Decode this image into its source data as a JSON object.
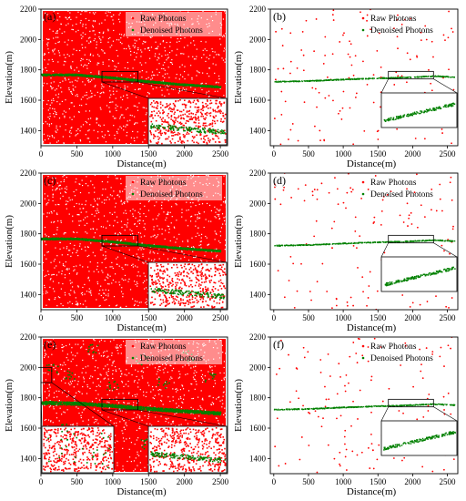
{
  "legend": {
    "raw_label": "Raw Photons",
    "denoised_label": "Denoised Photons"
  },
  "colors": {
    "raw": "#ff0000",
    "denoised": "#008000",
    "frame": "#000000"
  },
  "chart_data": [
    {
      "id": "a",
      "panel_label": "(a)",
      "type": "scatter",
      "xlabel": "Distance(m)",
      "ylabel": "Elevation(m)",
      "xlim": [
        0,
        2600
      ],
      "ylim": [
        1300,
        2200
      ],
      "xticks": [
        "0",
        "500",
        "1000",
        "1500",
        "2000",
        "2500"
      ],
      "yticks": [
        "1400",
        "1600",
        "1800",
        "2000",
        "2200"
      ],
      "raw_density": "dense",
      "noise_clusters": false,
      "series": [
        {
          "name": "Raw Photons",
          "x_range": [
            0,
            2600
          ],
          "y_range": [
            1300,
            2200
          ]
        },
        {
          "name": "Denoised Photons",
          "x": [
            0,
            500,
            1000,
            1500,
            2000,
            2500
          ],
          "y": [
            1770,
            1770,
            1750,
            1725,
            1705,
            1690
          ]
        }
      ],
      "zoom_boxes": [
        {
          "x": [
            850,
            1350
          ],
          "y": [
            1720,
            1790
          ]
        }
      ]
    },
    {
      "id": "b",
      "panel_label": "(b)",
      "type": "scatter",
      "xlabel": "Distance(m)",
      "ylabel": "Elevation(m)",
      "xlim": [
        -50,
        2650
      ],
      "ylim": [
        1300,
        2200
      ],
      "xticks": [
        "0",
        "500",
        "1000",
        "1500",
        "2000",
        "2500"
      ],
      "yticks": [
        "1400",
        "1600",
        "1800",
        "2000",
        "2200"
      ],
      "raw_density": "sparse",
      "noise_clusters": false,
      "series": [
        {
          "name": "Raw Photons",
          "x_range": [
            0,
            2600
          ],
          "y_range": [
            1300,
            2200
          ]
        },
        {
          "name": "Denoised Photons",
          "x": [
            0,
            500,
            1000,
            1500,
            2000,
            2300,
            2600
          ],
          "y": [
            1725,
            1730,
            1740,
            1748,
            1755,
            1762,
            1755
          ]
        }
      ],
      "zoom_boxes": [
        {
          "x": [
            1650,
            2300
          ],
          "y": [
            1740,
            1790
          ]
        }
      ]
    },
    {
      "id": "c",
      "panel_label": "(c)",
      "type": "scatter",
      "xlabel": "Distance(m)",
      "ylabel": "Elevation(m)",
      "xlim": [
        0,
        2600
      ],
      "ylim": [
        1300,
        2200
      ],
      "xticks": [
        "0",
        "500",
        "1000",
        "1500",
        "2000",
        "2500"
      ],
      "yticks": [
        "1400",
        "1600",
        "1800",
        "2000",
        "2200"
      ],
      "raw_density": "dense",
      "noise_clusters": false,
      "series": [
        {
          "name": "Raw Photons",
          "x_range": [
            0,
            2600
          ],
          "y_range": [
            1300,
            2200
          ]
        },
        {
          "name": "Denoised Photons",
          "x": [
            0,
            500,
            1000,
            1500,
            2000,
            2500
          ],
          "y": [
            1770,
            1770,
            1750,
            1725,
            1705,
            1690
          ]
        }
      ],
      "zoom_boxes": [
        {
          "x": [
            850,
            1350
          ],
          "y": [
            1720,
            1790
          ]
        }
      ]
    },
    {
      "id": "d",
      "panel_label": "(d)",
      "type": "scatter",
      "xlabel": "Distance(m)",
      "ylabel": "Elevation(m)",
      "xlim": [
        -50,
        2650
      ],
      "ylim": [
        1300,
        2200
      ],
      "xticks": [
        "0",
        "500",
        "1000",
        "1500",
        "2000",
        "2500"
      ],
      "yticks": [
        "1400",
        "1600",
        "1800",
        "2000",
        "2200"
      ],
      "raw_density": "sparse",
      "noise_clusters": false,
      "series": [
        {
          "name": "Raw Photons",
          "x_range": [
            0,
            2600
          ],
          "y_range": [
            1300,
            2200
          ]
        },
        {
          "name": "Denoised Photons",
          "x": [
            0,
            500,
            1000,
            1500,
            2000,
            2300,
            2600
          ],
          "y": [
            1725,
            1730,
            1740,
            1748,
            1755,
            1762,
            1755
          ]
        }
      ],
      "zoom_boxes": [
        {
          "x": [
            1650,
            2300
          ],
          "y": [
            1740,
            1790
          ]
        }
      ]
    },
    {
      "id": "e",
      "panel_label": "(e)",
      "type": "scatter",
      "xlabel": "Distance(m)",
      "ylabel": "Elevation(m)",
      "xlim": [
        0,
        2600
      ],
      "ylim": [
        1300,
        2200
      ],
      "xticks": [
        "0",
        "500",
        "1000",
        "1500",
        "2000",
        "2500"
      ],
      "yticks": [
        "1400",
        "1600",
        "1800",
        "2000",
        "2200"
      ],
      "raw_density": "dense",
      "noise_clusters": true,
      "series": [
        {
          "name": "Raw Photons",
          "x_range": [
            0,
            2600
          ],
          "y_range": [
            1300,
            2200
          ]
        },
        {
          "name": "Denoised Photons",
          "x": [
            0,
            500,
            1000,
            1500,
            2000,
            2500
          ],
          "y": [
            1770,
            1765,
            1750,
            1730,
            1715,
            1700
          ]
        }
      ],
      "zoom_boxes": [
        {
          "x": [
            0,
            150
          ],
          "y": [
            1900,
            2000
          ]
        },
        {
          "x": [
            850,
            1350
          ],
          "y": [
            1720,
            1790
          ]
        }
      ]
    },
    {
      "id": "f",
      "panel_label": "(f)",
      "type": "scatter",
      "xlabel": "Distance(m)",
      "ylabel": "Elevation(m)",
      "xlim": [
        -50,
        2650
      ],
      "ylim": [
        1300,
        2200
      ],
      "xticks": [
        "0",
        "500",
        "1000",
        "1500",
        "2000",
        "2500"
      ],
      "yticks": [
        "1400",
        "1600",
        "1800",
        "2000",
        "2200"
      ],
      "raw_density": "sparse",
      "noise_clusters": false,
      "series": [
        {
          "name": "Raw Photons",
          "x_range": [
            0,
            2600
          ],
          "y_range": [
            1300,
            2200
          ]
        },
        {
          "name": "Denoised Photons",
          "x": [
            0,
            500,
            1000,
            1500,
            2000,
            2300,
            2600
          ],
          "y": [
            1725,
            1730,
            1740,
            1748,
            1755,
            1762,
            1755
          ]
        }
      ],
      "zoom_boxes": [
        {
          "x": [
            1650,
            2300
          ],
          "y": [
            1740,
            1790
          ]
        }
      ]
    }
  ]
}
